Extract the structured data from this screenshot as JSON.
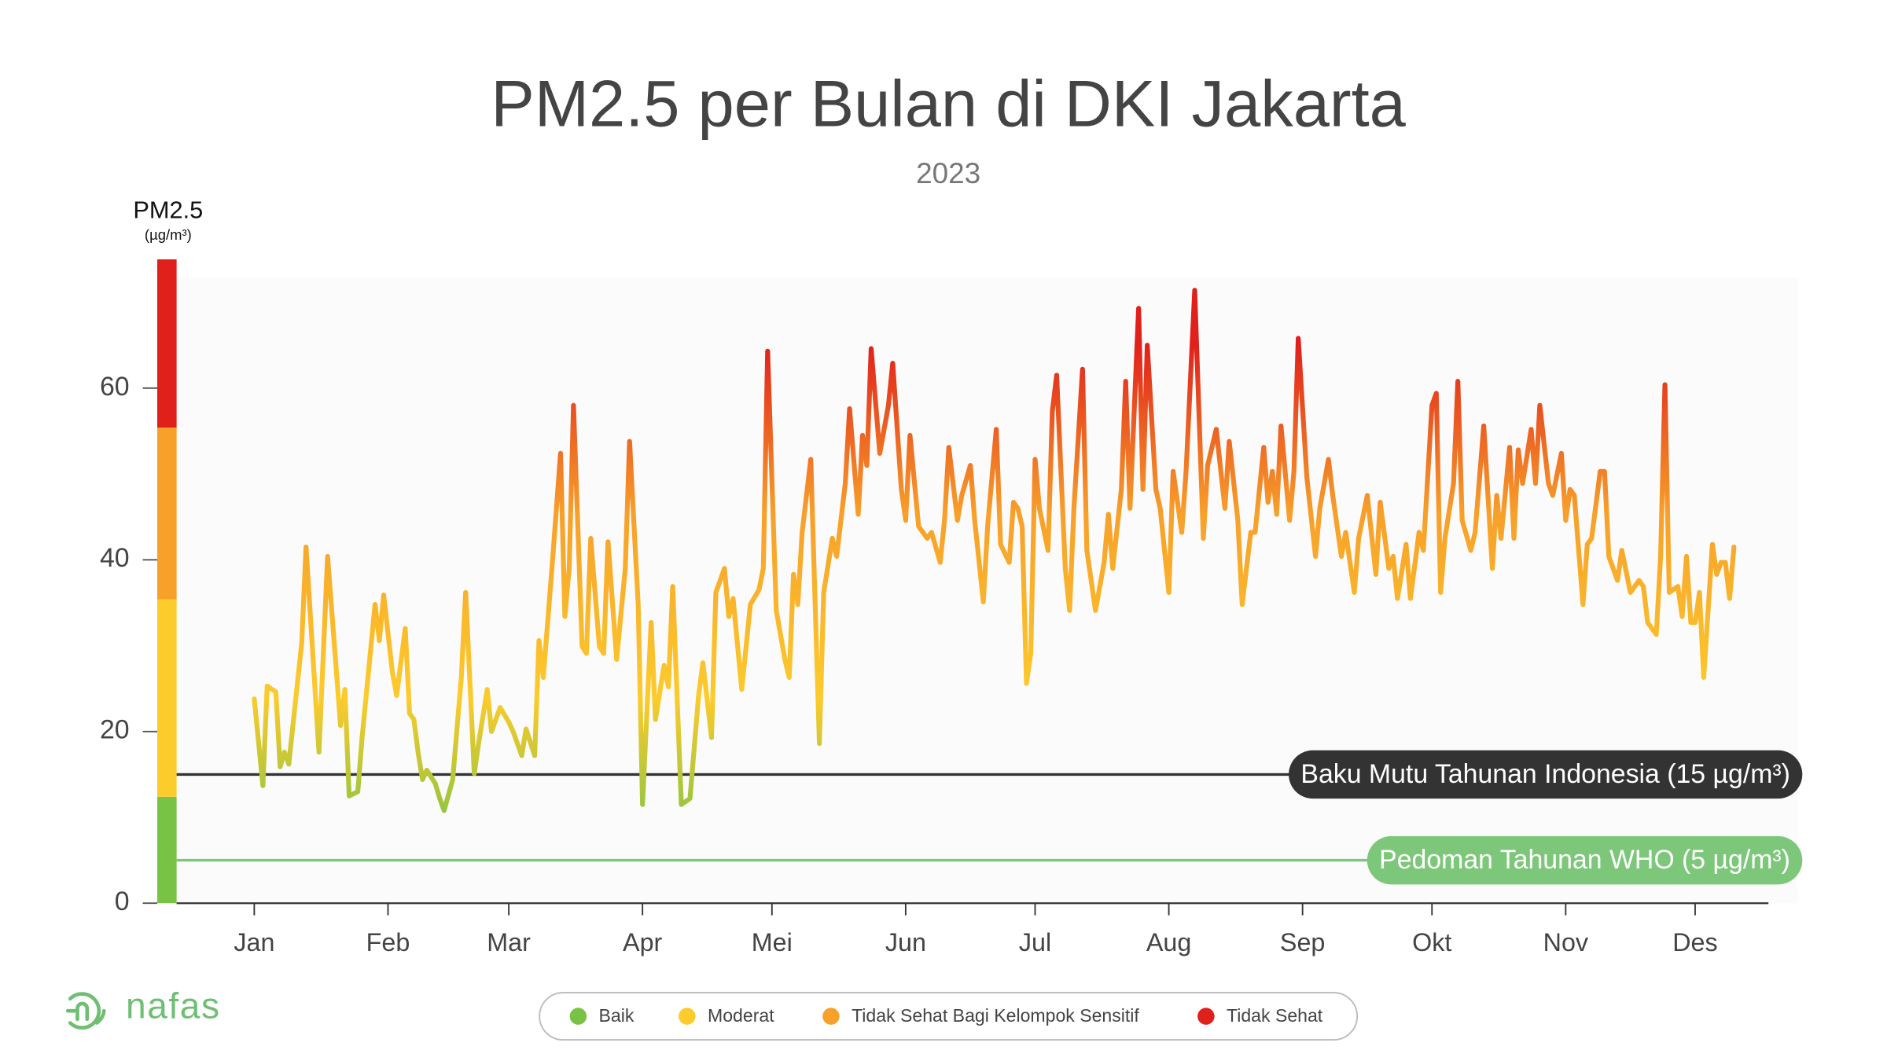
{
  "brand": "nafas",
  "chart_data": {
    "type": "line",
    "title": "PM2.5 per Bulan di DKI Jakarta",
    "subtitle": "2023",
    "ylabel": "PM2.5",
    "yunit": "(µg/m³)",
    "ylim": [
      0,
      75
    ],
    "yticks": [
      0,
      20,
      40,
      60
    ],
    "xlim": [
      -17,
      352
    ],
    "xticks": [
      {
        "value": 1,
        "label": "Jan"
      },
      {
        "value": 32,
        "label": "Feb"
      },
      {
        "value": 60,
        "label": "Mar"
      },
      {
        "value": 91,
        "label": "Apr"
      },
      {
        "value": 121,
        "label": "Mei"
      },
      {
        "value": 152,
        "label": "Jun"
      },
      {
        "value": 182,
        "label": "Jul"
      },
      {
        "value": 213,
        "label": "Aug"
      },
      {
        "value": 244,
        "label": "Sep"
      },
      {
        "value": 274,
        "label": "Okt"
      },
      {
        "value": 305,
        "label": "Nov"
      },
      {
        "value": 335,
        "label": "Des"
      }
    ],
    "bands": [
      {
        "name": "Baik",
        "color": "#78c346",
        "range": [
          0,
          12.4
        ]
      },
      {
        "name": "Moderat",
        "color": "#fccb2c",
        "range": [
          12.4,
          35.4
        ]
      },
      {
        "name": "Tidak Sehat Bagi Kelompok Sensitif",
        "color": "#f7a02a",
        "range": [
          35.4,
          55.4
        ]
      },
      {
        "name": "Tidak Sehat",
        "color": "#e0201b",
        "range": [
          55.4,
          75
        ]
      }
    ],
    "reference_lines": [
      {
        "value": 15,
        "label": "Baku Mutu Tahunan Indonesia (15 µg/m³)",
        "color": "#333333"
      },
      {
        "value": 5,
        "label": "Pedoman Tahunan WHO (5 µg/m³)",
        "color": "#7dc77a"
      }
    ],
    "x": [
      1,
      3,
      4,
      6,
      7,
      8,
      9,
      12,
      13,
      16,
      18,
      21,
      22,
      23,
      25,
      26,
      29,
      30,
      31,
      33,
      34,
      36,
      37,
      38,
      39,
      40,
      41,
      43,
      44,
      45,
      47,
      49,
      50,
      52,
      53,
      55,
      56,
      58,
      60,
      61,
      63,
      64,
      66,
      67,
      68,
      70,
      72,
      73,
      74,
      75,
      77,
      78,
      79,
      81,
      82,
      83,
      85,
      87,
      88,
      90,
      91,
      93,
      94,
      96,
      97,
      98,
      100,
      102,
      104,
      105,
      107,
      108,
      110,
      111,
      112,
      114,
      116,
      118,
      119,
      120,
      122,
      124,
      125,
      126,
      127,
      128,
      130,
      132,
      133,
      135,
      136,
      138,
      139,
      141,
      142,
      143,
      144,
      146,
      148,
      149,
      151,
      152,
      153,
      155,
      157,
      158,
      160,
      161,
      162,
      164,
      165,
      167,
      168,
      170,
      171,
      173,
      174,
      176,
      177,
      178,
      179,
      180,
      181,
      182,
      183,
      185,
      186,
      187,
      189,
      190,
      191,
      193,
      194,
      196,
      198,
      199,
      200,
      202,
      203,
      204,
      206,
      207,
      208,
      210,
      211,
      213,
      214,
      216,
      217,
      219,
      221,
      222,
      224,
      226,
      227,
      229,
      230,
      232,
      233,
      235,
      236,
      237,
      238,
      239,
      241,
      242,
      243,
      245,
      247,
      248,
      250,
      251,
      253,
      254,
      256,
      257,
      259,
      261,
      262,
      264,
      265,
      266,
      268,
      269,
      271,
      272,
      274,
      275,
      276,
      277,
      279,
      280,
      281,
      283,
      284,
      286,
      288,
      289,
      290,
      292,
      293,
      294,
      295,
      297,
      298,
      299,
      301,
      302,
      304,
      305,
      306,
      307,
      309,
      310,
      311,
      313,
      314,
      315,
      317,
      318,
      320,
      322,
      323,
      324,
      326,
      327,
      328,
      329,
      331,
      332,
      333,
      334,
      335,
      336,
      337,
      339,
      340,
      341,
      342,
      343,
      344
    ],
    "values": [
      23.8,
      13.7,
      25.3,
      24.6,
      15.9,
      17.6,
      16.2,
      30.3,
      41.5,
      17.6,
      40.4,
      20.7,
      24.9,
      12.5,
      13.0,
      19.3,
      34.8,
      30.6,
      35.9,
      27.0,
      24.2,
      32.0,
      22.1,
      21.4,
      17.5,
      14.4,
      15.5,
      13.9,
      12.2,
      10.8,
      14.4,
      26.3,
      36.2,
      15.1,
      18.6,
      24.9,
      20.0,
      22.8,
      21.1,
      20.0,
      17.2,
      20.3,
      17.2,
      30.6,
      26.3,
      39.0,
      52.4,
      33.4,
      39.0,
      58.0,
      29.9,
      29.1,
      42.5,
      29.9,
      29.1,
      42.1,
      28.4,
      39.0,
      53.8,
      34.8,
      11.5,
      32.7,
      21.4,
      27.7,
      25.2,
      36.9,
      11.5,
      12.2,
      24.2,
      28.0,
      19.3,
      36.2,
      39.0,
      33.4,
      35.5,
      24.9,
      34.8,
      36.5,
      39.0,
      64.3,
      34.1,
      28.4,
      26.3,
      38.3,
      34.8,
      43.2,
      51.7,
      18.6,
      36.2,
      42.5,
      40.4,
      48.9,
      57.6,
      45.3,
      54.5,
      51.0,
      64.6,
      52.4,
      58.0,
      62.9,
      48.2,
      44.6,
      54.5,
      43.9,
      42.5,
      43.2,
      39.7,
      44.6,
      53.1,
      44.6,
      47.5,
      51.0,
      44.6,
      35.1,
      43.9,
      55.2,
      41.8,
      39.7,
      46.7,
      46.0,
      43.9,
      25.6,
      29.1,
      51.7,
      46.0,
      41.1,
      57.3,
      61.5,
      39.0,
      34.1,
      46.0,
      62.2,
      41.1,
      34.1,
      39.7,
      45.3,
      39.0,
      48.2,
      60.8,
      46.0,
      69.3,
      48.2,
      65.0,
      48.2,
      46.0,
      36.2,
      50.3,
      43.2,
      50.3,
      71.4,
      42.5,
      51.0,
      55.2,
      46.0,
      53.8,
      44.6,
      34.8,
      43.2,
      43.2,
      53.1,
      46.7,
      50.3,
      45.3,
      55.6,
      44.6,
      50.3,
      65.8,
      49.6,
      40.4,
      46.0,
      51.7,
      47.5,
      40.4,
      43.2,
      36.2,
      42.5,
      47.5,
      38.3,
      46.7,
      39.0,
      40.4,
      35.5,
      41.8,
      35.5,
      43.2,
      41.1,
      58.0,
      59.4,
      36.2,
      42.5,
      48.9,
      60.8,
      44.6,
      41.1,
      43.2,
      55.6,
      39.0,
      47.5,
      42.5,
      53.1,
      42.5,
      52.8,
      48.9,
      55.2,
      48.9,
      58.0,
      48.9,
      47.5,
      52.4,
      44.6,
      48.2,
      47.5,
      34.8,
      41.8,
      42.5,
      50.3,
      50.3,
      40.4,
      37.6,
      41.1,
      36.2,
      37.6,
      36.9,
      32.7,
      31.3,
      40.4,
      60.4,
      36.2,
      36.9,
      33.4,
      40.4,
      32.7,
      32.7,
      36.2,
      26.3,
      41.8,
      38.3,
      39.7,
      39.7,
      35.5,
      41.5
    ]
  }
}
